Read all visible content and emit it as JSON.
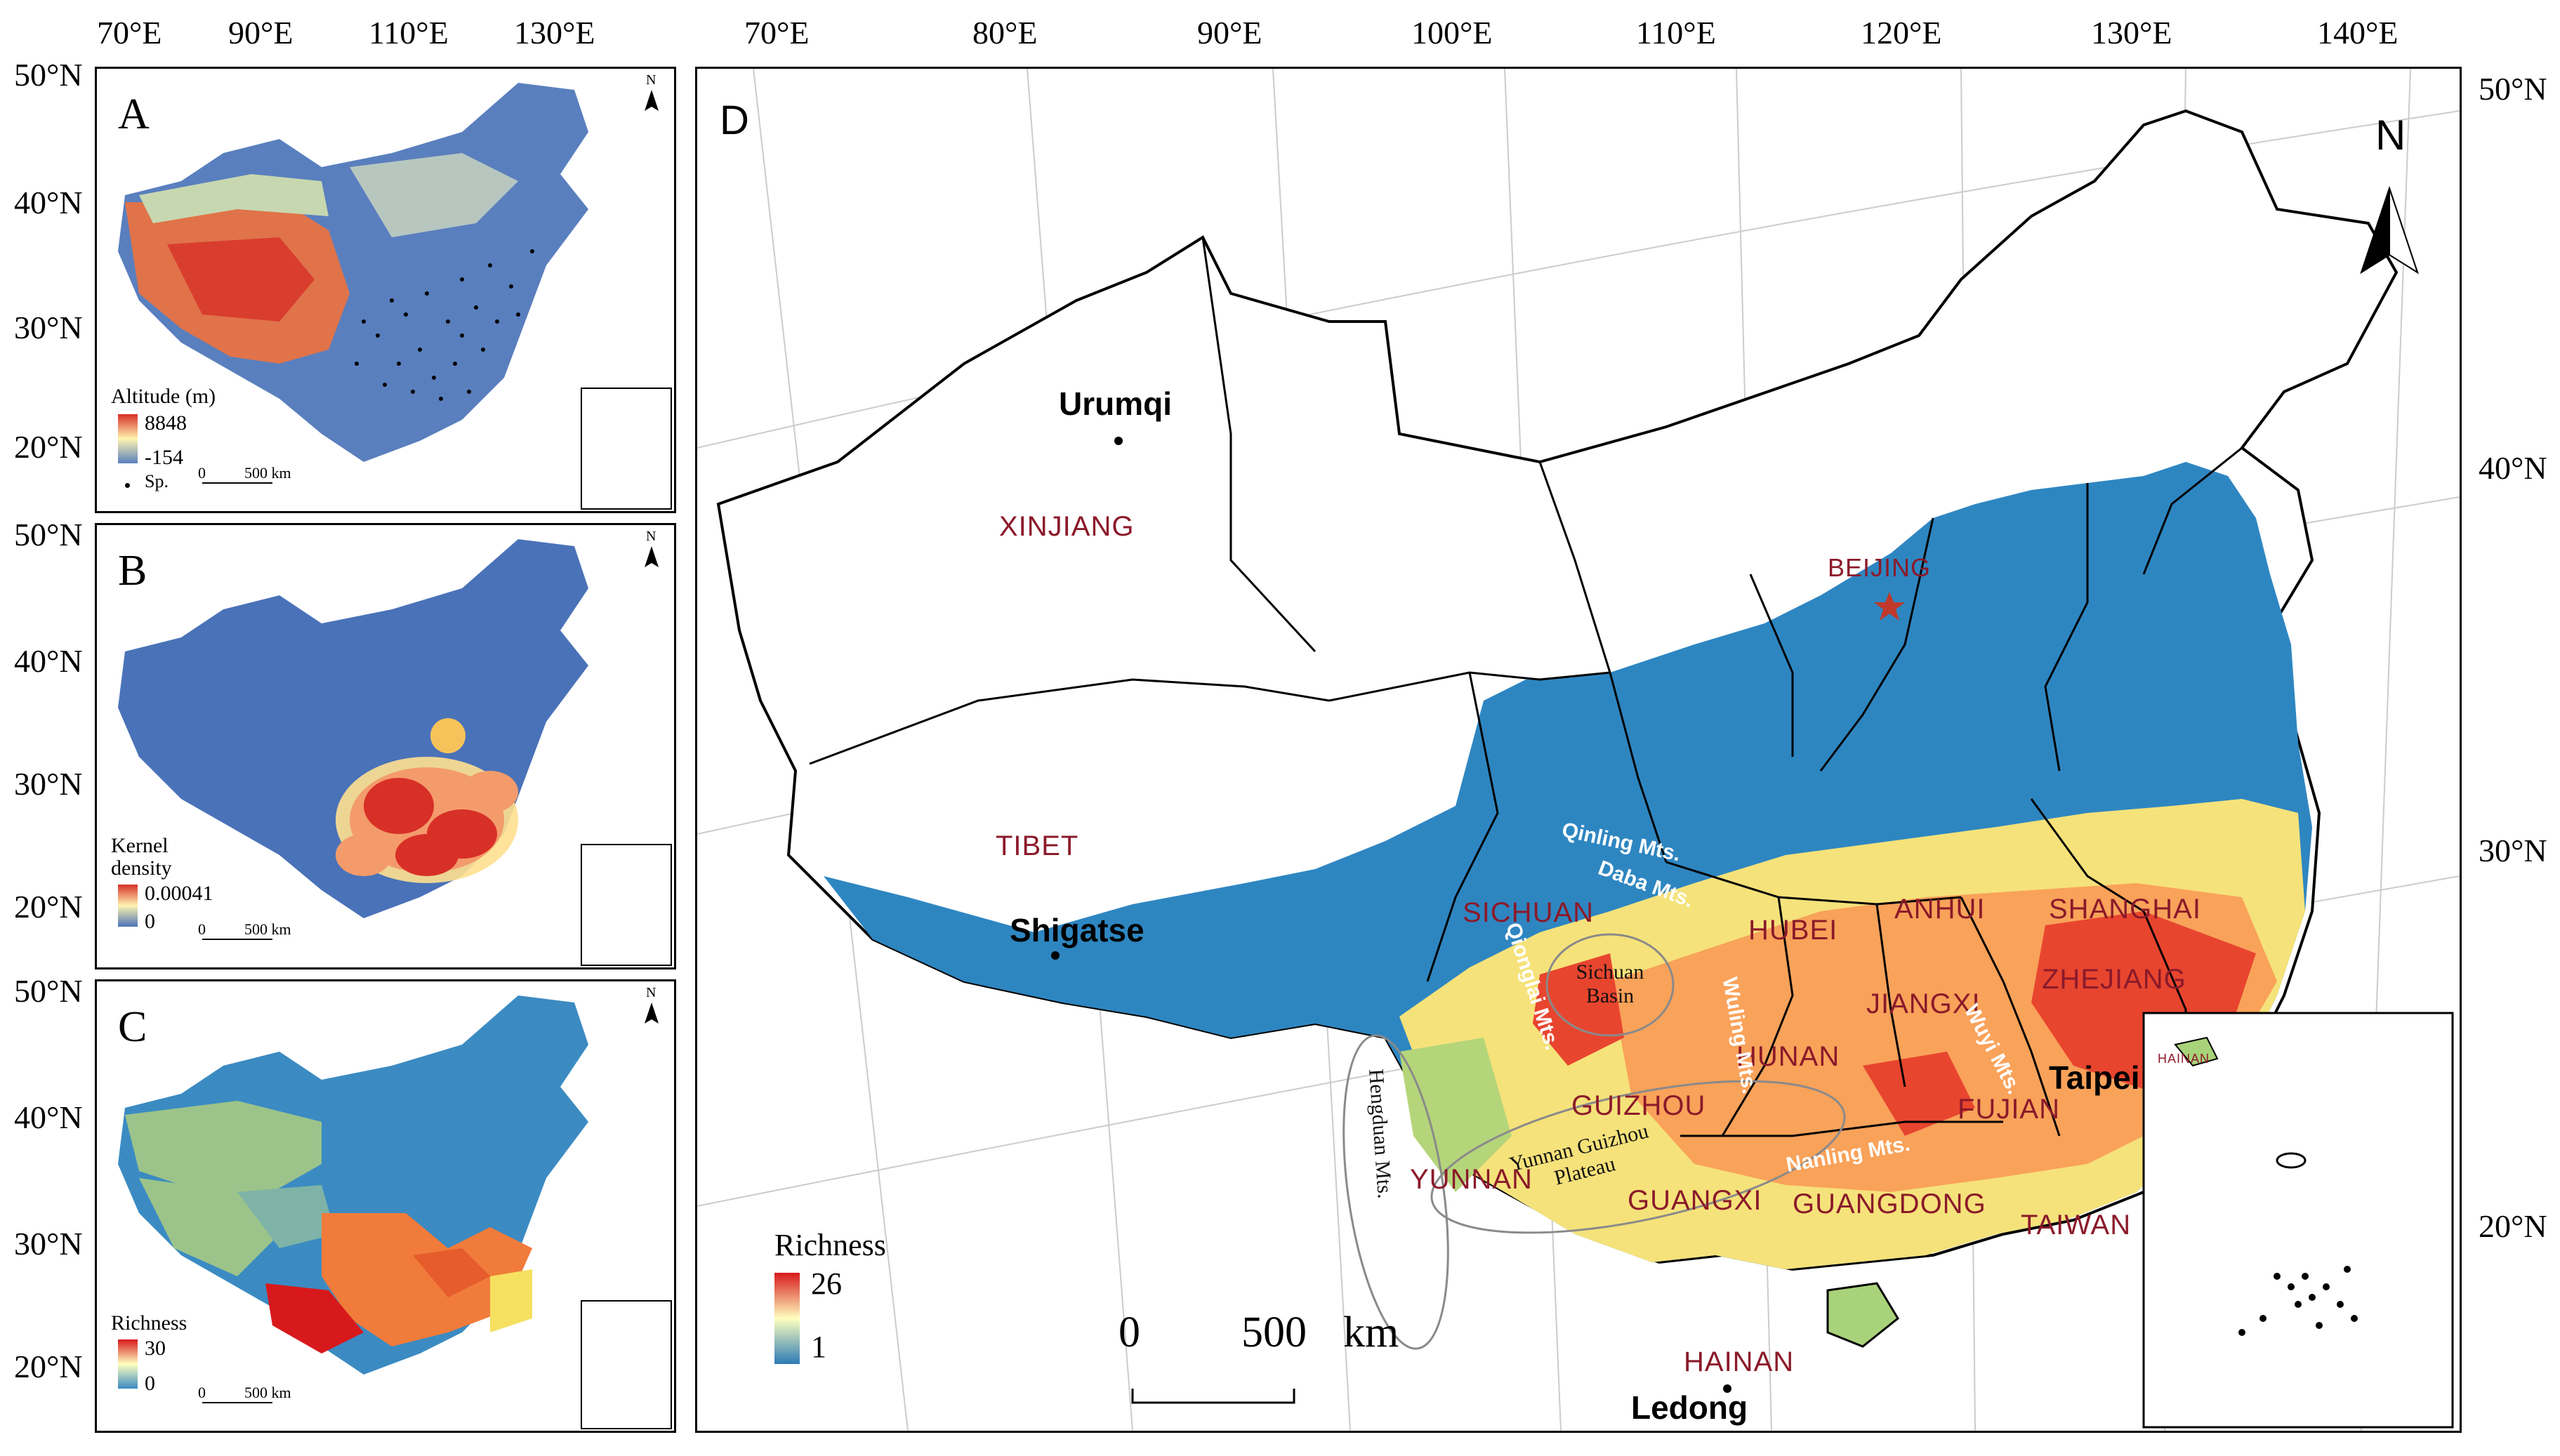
{
  "top_axis_small": [
    "70°E",
    "90°E",
    "110°E",
    "130°E"
  ],
  "top_axis_main": [
    "70°E",
    "80°E",
    "90°E",
    "100°E",
    "110°E",
    "120°E",
    "130°E",
    "140°E"
  ],
  "lat_small": [
    "50°N",
    "40°N",
    "30°N",
    "20°N"
  ],
  "lat_main": [
    "50°N",
    "40°N",
    "30°N",
    "20°N"
  ],
  "panel_a": {
    "letter": "A",
    "legend_title": "Altitude (m)",
    "legend_max": "8848",
    "legend_min": "-154",
    "point_label": "Sp.",
    "scale_zero": "0",
    "scale_len": "500 km",
    "north": "N"
  },
  "panel_b": {
    "letter": "B",
    "legend_title_1": "Kernel",
    "legend_title_2": "density",
    "legend_max": "0.00041",
    "legend_min": "0",
    "scale_zero": "0",
    "scale_len": "500 km",
    "north": "N"
  },
  "panel_c": {
    "letter": "C",
    "legend_title": "Richness",
    "legend_max": "30",
    "legend_min": "0",
    "scale_zero": "0",
    "scale_len": "500 km",
    "north": "N"
  },
  "panel_d": {
    "letter": "D",
    "north": "N",
    "legend_title": "Richness",
    "legend_max": "26",
    "legend_min": "1",
    "scale_zero": "0",
    "scale_len": "500",
    "scale_unit": "km",
    "provinces": [
      "XINJIANG",
      "TIBET",
      "SICHUAN",
      "YUNNAN",
      "GUIZHOU",
      "GUANGXI",
      "HUNAN",
      "HUBEI",
      "ANHUI",
      "SHANGHAI",
      "ZHEJIANG",
      "JIANGXI",
      "FUJIAN",
      "GUANGDONG",
      "TAIWAN",
      "HAINAN",
      "BEIJING"
    ],
    "cities": [
      "Urumqi",
      "Shigatse",
      "Taipei",
      "Ledong"
    ],
    "mountains": [
      "Qinling Mts.",
      "Daba Mts.",
      "Qionglai Mts.",
      "Hengduan Mts.",
      "Wuling Mts.",
      "Nanling Mts.",
      "Wuyi Mts."
    ],
    "basins": [
      "Sichuan Basin",
      "Yunnan Guizhou Plateau"
    ],
    "inset_label": "HAINAN"
  },
  "colors": {
    "ocean": "#ffffff",
    "high": "#d7191c",
    "mid": "#fdae61",
    "low_mid": "#ffffbf",
    "low": "#2c7bb6",
    "label_red": "#8b1a2a"
  }
}
